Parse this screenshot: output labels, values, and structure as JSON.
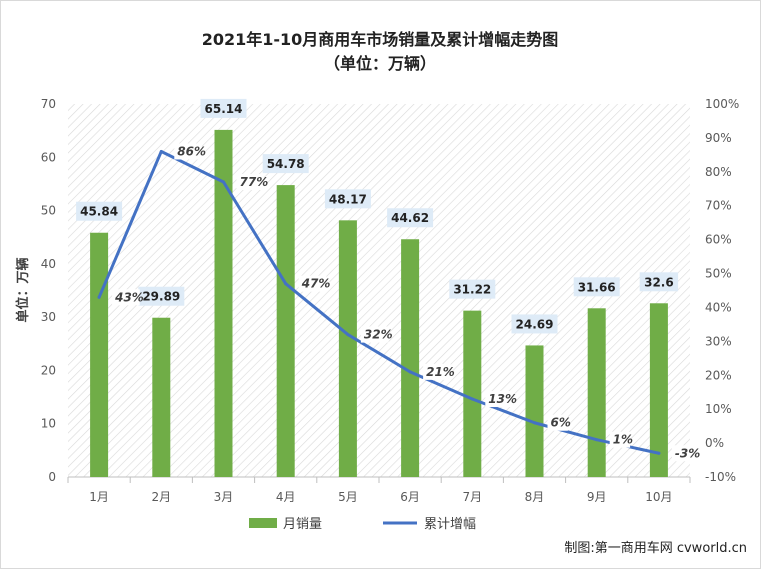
{
  "chart_data": {
    "type": "bar",
    "title": "2021年1-10月商用车市场销量及累计增幅走势图",
    "subtitle": "（单位：万辆）",
    "ylabel": "单位：万辆",
    "categories": [
      "1月",
      "2月",
      "3月",
      "4月",
      "5月",
      "6月",
      "7月",
      "8月",
      "9月",
      "10月"
    ],
    "series": [
      {
        "name": "月销量",
        "type": "bar",
        "axis": "left",
        "color": "#70AD47",
        "values": [
          45.84,
          29.89,
          65.14,
          54.78,
          48.17,
          44.62,
          31.22,
          24.69,
          31.66,
          32.6
        ]
      },
      {
        "name": "累计增幅",
        "type": "line",
        "axis": "right",
        "color": "#4472C4",
        "values": [
          43,
          86,
          77,
          47,
          32,
          21,
          13,
          6,
          1,
          -3
        ]
      }
    ],
    "ylim": [
      0,
      70
    ],
    "yticks": [
      "0",
      "10",
      "20",
      "30",
      "40",
      "50",
      "60",
      "70"
    ],
    "y2lim": [
      -10,
      100
    ],
    "y2ticks": [
      "-10%",
      "0%",
      "10%",
      "20%",
      "30%",
      "40%",
      "50%",
      "60%",
      "70%",
      "80%",
      "90%",
      "100%"
    ],
    "bar_labels": [
      "45.84",
      "29.89",
      "65.14",
      "54.78",
      "48.17",
      "44.62",
      "31.22",
      "24.69",
      "31.66",
      "32.6"
    ],
    "line_labels": [
      "43%",
      "86%",
      "77%",
      "47%",
      "32%",
      "21%",
      "13%",
      "6%",
      "1%",
      "-3%"
    ],
    "legend_position": "bottom",
    "grid": false
  },
  "credit": "制图:第一商用车网 cvworld.cn"
}
